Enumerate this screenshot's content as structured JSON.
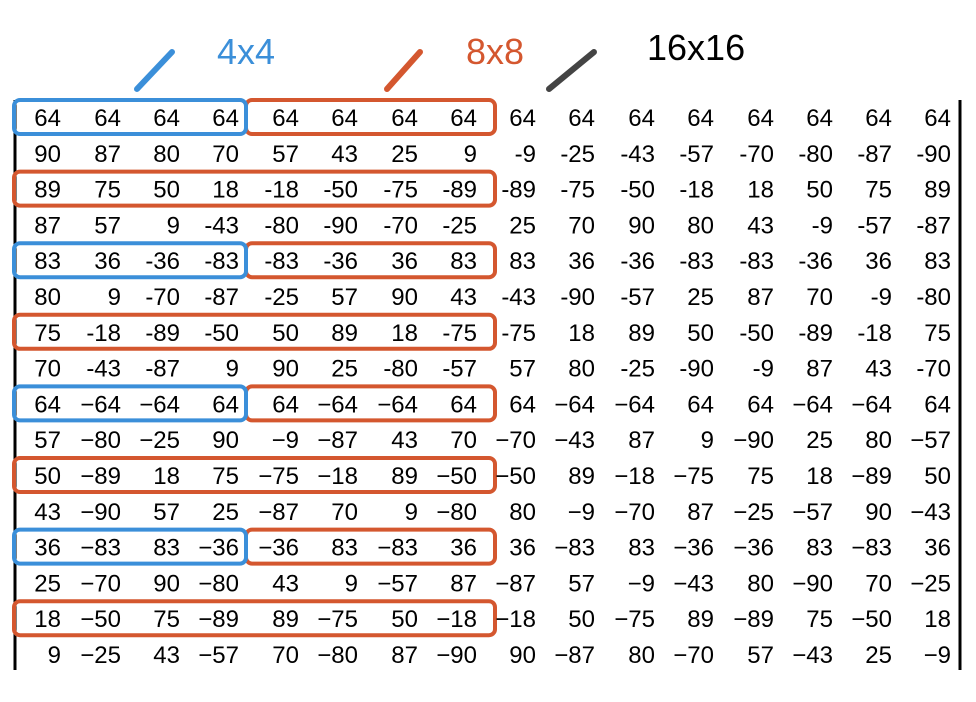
{
  "labels": {
    "size_4": {
      "text": "4x4",
      "color": "#3b8fd9"
    },
    "size_8": {
      "text": "8x8",
      "color": "#d4572f"
    },
    "size_16": {
      "text": "16x16",
      "color": "#000000"
    },
    "size_16_pointer_color": "#444444"
  },
  "matrix": {
    "rows": [
      [
        "64",
        "64",
        "64",
        "64",
        "64",
        "64",
        "64",
        "64",
        "64",
        "64",
        "64",
        "64",
        "64",
        "64",
        "64",
        "64"
      ],
      [
        "90",
        "87",
        "80",
        "70",
        "57",
        "43",
        "25",
        "9",
        "-9",
        "-25",
        "-43",
        "-57",
        "-70",
        "-80",
        "-87",
        "-90"
      ],
      [
        "89",
        "75",
        "50",
        "18",
        "-18",
        "-50",
        "-75",
        "-89",
        "-89",
        "-75",
        "-50",
        "-18",
        "18",
        "50",
        "75",
        "89"
      ],
      [
        "87",
        "57",
        "9",
        "-43",
        "-80",
        "-90",
        "-70",
        "-25",
        "25",
        "70",
        "90",
        "80",
        "43",
        "-9",
        "-57",
        "-87"
      ],
      [
        "83",
        "36",
        "-36",
        "-83",
        "-83",
        "-36",
        "36",
        "83",
        "83",
        "36",
        "-36",
        "-83",
        "-83",
        "-36",
        "36",
        "83"
      ],
      [
        "80",
        "9",
        "-70",
        "-87",
        "-25",
        "57",
        "90",
        "43",
        "-43",
        "-90",
        "-57",
        "25",
        "87",
        "70",
        "-9",
        "-80"
      ],
      [
        "75",
        "-18",
        "-89",
        "-50",
        "50",
        "89",
        "18",
        "-75",
        "-75",
        "18",
        "89",
        "50",
        "-50",
        "-89",
        "-18",
        "75"
      ],
      [
        "70",
        "-43",
        "-87",
        "9",
        "90",
        "25",
        "-80",
        "-57",
        "57",
        "80",
        "-25",
        "-90",
        "-9",
        "87",
        "43",
        "-70"
      ],
      [
        "64",
        "−64",
        "−64",
        "64",
        "64",
        "−64",
        "−64",
        "64",
        "64",
        "−64",
        "−64",
        "64",
        "64",
        "−64",
        "−64",
        "64"
      ],
      [
        "57",
        "−80",
        "−25",
        "90",
        "−9",
        "−87",
        "43",
        "70",
        "−70",
        "−43",
        "87",
        "9",
        "−90",
        "25",
        "80",
        "−57"
      ],
      [
        "50",
        "−89",
        "18",
        "75",
        "−75",
        "−18",
        "89",
        "−50",
        "−50",
        "89",
        "−18",
        "−75",
        "75",
        "18",
        "−89",
        "50"
      ],
      [
        "43",
        "−90",
        "57",
        "25",
        "−87",
        "70",
        "9",
        "−80",
        "80",
        "−9",
        "−70",
        "87",
        "−25",
        "−57",
        "90",
        "−43"
      ],
      [
        "36",
        "−83",
        "83",
        "−36",
        "−36",
        "83",
        "−83",
        "36",
        "36",
        "−83",
        "83",
        "−36",
        "−36",
        "83",
        "−83",
        "36"
      ],
      [
        "25",
        "−70",
        "90",
        "−80",
        "43",
        "9",
        "−57",
        "87",
        "−87",
        "57",
        "−9",
        "−43",
        "80",
        "−90",
        "70",
        "−25"
      ],
      [
        "18",
        "−50",
        "75",
        "−89",
        "89",
        "−75",
        "50",
        "−18",
        "−18",
        "50",
        "−75",
        "89",
        "−89",
        "75",
        "−50",
        "18"
      ],
      [
        "9",
        "−25",
        "43",
        "−57",
        "70",
        "−80",
        "87",
        "−90",
        "90",
        "−87",
        "80",
        "−70",
        "57",
        "−43",
        "25",
        "−9"
      ]
    ],
    "highlight_4x4_rows": [
      0,
      4,
      8,
      12
    ],
    "highlight_8x8_rows": [
      0,
      2,
      4,
      6,
      8,
      10,
      12,
      14
    ]
  }
}
